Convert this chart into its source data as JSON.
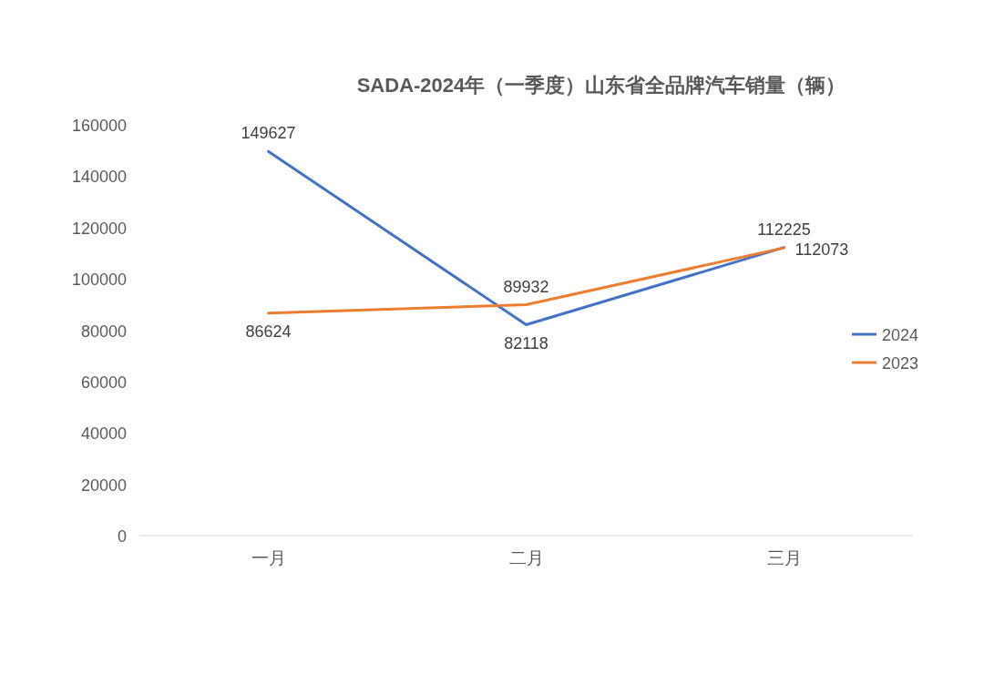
{
  "chart_data": {
    "type": "line",
    "title": "SADA-2024年（一季度）山东省全品牌汽车销量（辆）",
    "categories": [
      "一月",
      "二月",
      "三月"
    ],
    "series": [
      {
        "name": "2024",
        "color": "#4472c4",
        "values": [
          149627,
          82118,
          112225
        ]
      },
      {
        "name": "2023",
        "color": "#ed7d31",
        "values": [
          86624,
          89932,
          112073
        ]
      }
    ],
    "ylim": [
      0,
      160000
    ],
    "yticks": [
      0,
      20000,
      40000,
      60000,
      80000,
      100000,
      120000,
      140000,
      160000
    ],
    "data_labels": true,
    "legend": "right"
  }
}
